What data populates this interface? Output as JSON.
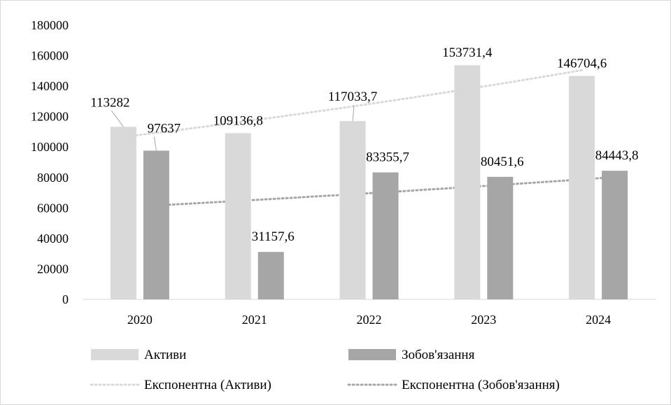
{
  "chart_data": {
    "type": "bar",
    "categories": [
      "2020",
      "2021",
      "2022",
      "2023",
      "2024"
    ],
    "series": [
      {
        "name": "Активи",
        "values": [
          113282,
          109136.8,
          117033.7,
          153731.4,
          146704.6
        ],
        "color": "#d9d9d9",
        "labels": [
          "113282",
          "109136,8",
          "117033,7",
          "153731,4",
          "146704,6"
        ]
      },
      {
        "name": "Зобов'язання",
        "values": [
          97637,
          31157.6,
          83355.7,
          80451.6,
          84443.8
        ],
        "color": "#a6a6a6",
        "labels": [
          "97637",
          "31157,6",
          "83355,7",
          "80451,6",
          "84443,8"
        ]
      }
    ],
    "trendlines": [
      {
        "name": "Експонентна (Активи)",
        "type": "exponential",
        "series": "Активи",
        "color": "#d9d9d9"
      },
      {
        "name": "Експонентна (Зобов'язання)",
        "type": "exponential",
        "series": "Зобов'язання",
        "color": "#a6a6a6"
      }
    ],
    "ylim": [
      0,
      180000
    ],
    "yticks": [
      "0",
      "20000",
      "40000",
      "60000",
      "80000",
      "100000",
      "120000",
      "140000",
      "160000",
      "180000"
    ],
    "title": "",
    "xlabel": "",
    "ylabel": "",
    "grid": false,
    "legend_position": "bottom"
  }
}
